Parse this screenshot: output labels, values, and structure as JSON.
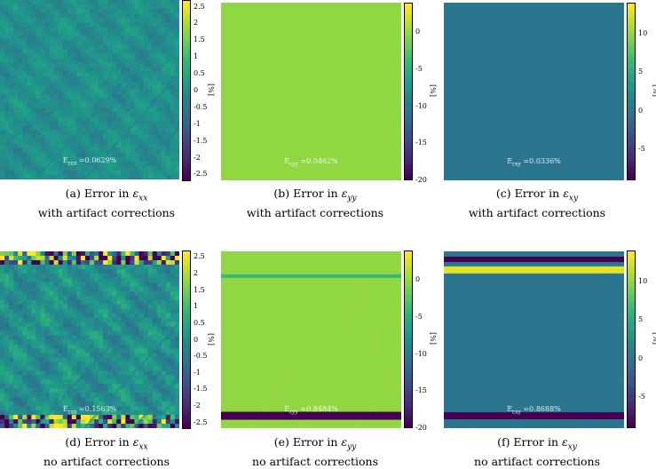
{
  "chart_data": [
    {
      "type": "heatmap",
      "id": "a",
      "caption_line1": "(a) Error in ",
      "caption_symbol": "ε",
      "caption_sub": "xx",
      "caption_line2": "with artifact corrections",
      "overlay_label": "Ē",
      "overlay_sub": "ε",
      "overlay_value": "=0.0629%",
      "unit": "[%]",
      "colorbar_ticks": [
        "2.5",
        "2",
        "1.5",
        "1",
        "0.5",
        "0",
        "-0.5",
        "-1",
        "-1.5",
        "-2",
        "-2.5"
      ],
      "colorbar_range": [
        -2.7,
        2.7
      ],
      "base_value": 0.0,
      "pattern": "diagonal-ripples",
      "bands": []
    },
    {
      "type": "heatmap",
      "id": "b",
      "caption_line1": "(b) Error in ",
      "caption_symbol": "ε",
      "caption_sub": "yy",
      "caption_line2": "with artifact corrections",
      "overlay_label": "Ē",
      "overlay_sub": "ε",
      "overlay_value": "=0.0462%",
      "unit": "[%]",
      "colorbar_ticks": [
        "0",
        "-5",
        "-10",
        "-15",
        "-20"
      ],
      "colorbar_range": [
        -20,
        4
      ],
      "base_value": 0.0,
      "pattern": "uniform",
      "bands": []
    },
    {
      "type": "heatmap",
      "id": "c",
      "caption_line1": "(c) Error in ",
      "caption_symbol": "ε",
      "caption_sub": "xy",
      "caption_line2": "with artifact corrections",
      "overlay_label": "Ē",
      "overlay_sub": "ε",
      "overlay_value": "=0.0336%",
      "unit": "[%]",
      "colorbar_ticks": [
        "10",
        "5",
        "0",
        "-5"
      ],
      "colorbar_range": [
        -9,
        14
      ],
      "base_value": 0.0,
      "pattern": "uniform",
      "bands": []
    },
    {
      "type": "heatmap",
      "id": "d",
      "caption_line1": "(d) Error in ",
      "caption_symbol": "ε",
      "caption_sub": "xx",
      "caption_line2": "no artifact corrections",
      "overlay_label": "Ē",
      "overlay_sub": "ε",
      "overlay_value": "=0.1563%",
      "unit": "[%]",
      "colorbar_ticks": [
        "2.5",
        "2",
        "1.5",
        "1",
        "0.5",
        "0",
        "-0.5",
        "-1",
        "-1.5",
        "-2",
        "-2.5"
      ],
      "colorbar_range": [
        -2.7,
        2.7
      ],
      "base_value": 0.0,
      "pattern": "diagonal-ripples-strong",
      "bands": []
    },
    {
      "type": "heatmap",
      "id": "e",
      "caption_line1": "(e) Error in ",
      "caption_symbol": "ε",
      "caption_sub": "yy",
      "caption_line2": "no artifact corrections",
      "overlay_label": "Ē",
      "overlay_sub": "ε",
      "overlay_value": "=0.8484%",
      "unit": "[%]",
      "colorbar_ticks": [
        "0",
        "-5",
        "-10",
        "-15",
        "-20"
      ],
      "colorbar_range": [
        -20,
        4
      ],
      "base_value": 0.0,
      "pattern": "faint-diagonal",
      "bands": [
        {
          "pos": 0.14,
          "thickness": 0.02,
          "value": -4
        },
        {
          "pos": 0.93,
          "thickness": 0.045,
          "value": -20
        }
      ]
    },
    {
      "type": "heatmap",
      "id": "f",
      "caption_line1": "(f) Error in ",
      "caption_symbol": "ε",
      "caption_sub": "xy",
      "caption_line2": "no artifact corrections",
      "overlay_label": "Ē",
      "overlay_sub": "ε",
      "overlay_value": "=0.8688%",
      "unit": "[%]",
      "colorbar_ticks": [
        "10",
        "5",
        "0",
        "-5"
      ],
      "colorbar_range": [
        -9,
        14
      ],
      "base_value": 0.0,
      "pattern": "faint-diagonal",
      "bands": [
        {
          "pos": 0.045,
          "thickness": 0.03,
          "value": -9
        },
        {
          "pos": 0.105,
          "thickness": 0.04,
          "value": 13
        },
        {
          "pos": 0.93,
          "thickness": 0.04,
          "value": -9
        }
      ]
    }
  ]
}
